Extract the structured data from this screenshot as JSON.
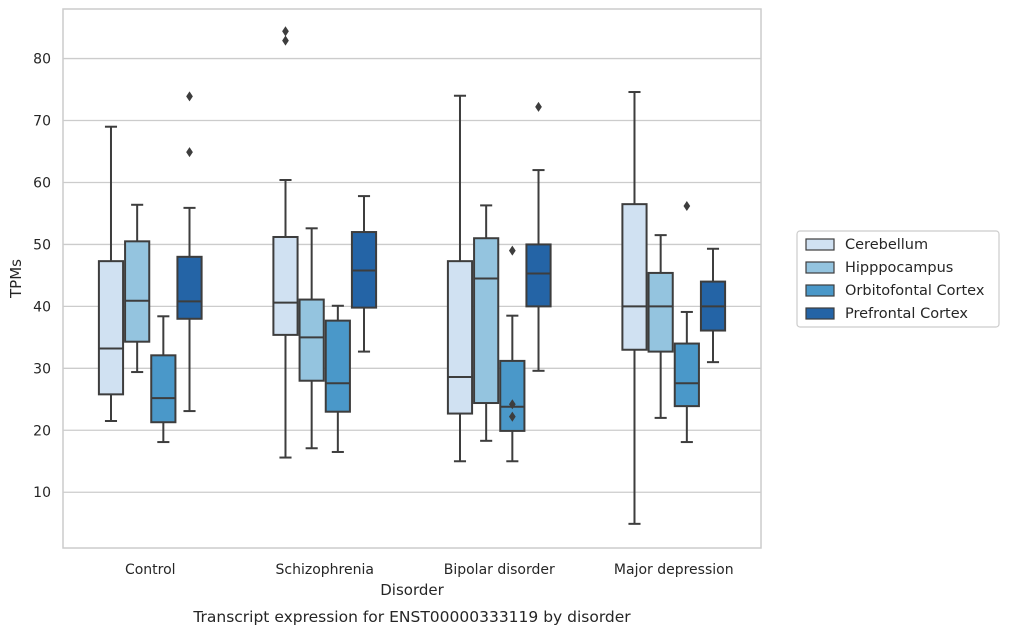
{
  "chart_data": {
    "type": "boxplot",
    "title": "",
    "caption": "Transcript expression for ENST00000333119 by disorder",
    "xlabel": "Disorder",
    "ylabel": "TPMs",
    "ylim": [
      1,
      88
    ],
    "yticks": [
      10,
      20,
      30,
      40,
      50,
      60,
      70,
      80
    ],
    "grid": "horizontal",
    "legend_position": "right",
    "categories": [
      "Control",
      "Schizophrenia",
      "Bipolar disorder",
      "Major depression"
    ],
    "series": [
      {
        "name": "Cerebellum",
        "color": "#d0e1f2",
        "boxes": [
          {
            "whisker_low": 21.5,
            "q1": 25.8,
            "median": 33.2,
            "q3": 47.3,
            "whisker_high": 69.0,
            "outliers": []
          },
          {
            "whisker_low": 15.6,
            "q1": 35.4,
            "median": 40.6,
            "q3": 51.2,
            "whisker_high": 60.4,
            "outliers": [
              82.9,
              84.4
            ]
          },
          {
            "whisker_low": 15.0,
            "q1": 22.7,
            "median": 28.6,
            "q3": 47.3,
            "whisker_high": 74.0,
            "outliers": []
          },
          {
            "whisker_low": 4.9,
            "q1": 33.0,
            "median": 40.0,
            "q3": 56.5,
            "whisker_high": 74.6,
            "outliers": []
          }
        ]
      },
      {
        "name": "Hipppocampus",
        "color": "#94c4df",
        "boxes": [
          {
            "whisker_low": 29.4,
            "q1": 34.3,
            "median": 40.9,
            "q3": 50.5,
            "whisker_high": 56.4,
            "outliers": []
          },
          {
            "whisker_low": 17.1,
            "q1": 28.0,
            "median": 35.0,
            "q3": 41.1,
            "whisker_high": 52.6,
            "outliers": []
          },
          {
            "whisker_low": 18.3,
            "q1": 24.4,
            "median": 44.5,
            "q3": 51.0,
            "whisker_high": 56.3,
            "outliers": []
          },
          {
            "whisker_low": 22.0,
            "q1": 32.7,
            "median": 40.0,
            "q3": 45.4,
            "whisker_high": 51.5,
            "outliers": []
          }
        ]
      },
      {
        "name": "Orbitofontal Cortex",
        "color": "#4a98c9",
        "boxes": [
          {
            "whisker_low": 18.1,
            "q1": 21.3,
            "median": 25.2,
            "q3": 32.1,
            "whisker_high": 38.4,
            "outliers": []
          },
          {
            "whisker_low": 16.5,
            "q1": 23.0,
            "median": 27.6,
            "q3": 37.7,
            "whisker_high": 40.1,
            "outliers": []
          },
          {
            "whisker_low": 15.0,
            "q1": 19.9,
            "median": 23.8,
            "q3": 31.2,
            "whisker_high": 38.5,
            "outliers": [
              22.2,
              24.2,
              49.0
            ]
          },
          {
            "whisker_low": 18.1,
            "q1": 23.9,
            "median": 27.6,
            "q3": 34.0,
            "whisker_high": 39.1,
            "outliers": [
              56.2
            ]
          }
        ]
      },
      {
        "name": "Prefrontal Cortex",
        "color": "#2464a6",
        "boxes": [
          {
            "whisker_low": 23.1,
            "q1": 38.0,
            "median": 40.8,
            "q3": 48.0,
            "whisker_high": 55.9,
            "outliers": [
              64.9,
              73.9
            ]
          },
          {
            "whisker_low": 32.7,
            "q1": 39.8,
            "median": 45.8,
            "q3": 52.0,
            "whisker_high": 57.8,
            "outliers": []
          },
          {
            "whisker_low": 29.6,
            "q1": 40.0,
            "median": 45.3,
            "q3": 50.0,
            "whisker_high": 62.0,
            "outliers": [
              72.2
            ]
          },
          {
            "whisker_low": 31.0,
            "q1": 36.1,
            "median": 40.0,
            "q3": 44.0,
            "whisker_high": 49.3,
            "outliers": []
          }
        ]
      }
    ]
  }
}
